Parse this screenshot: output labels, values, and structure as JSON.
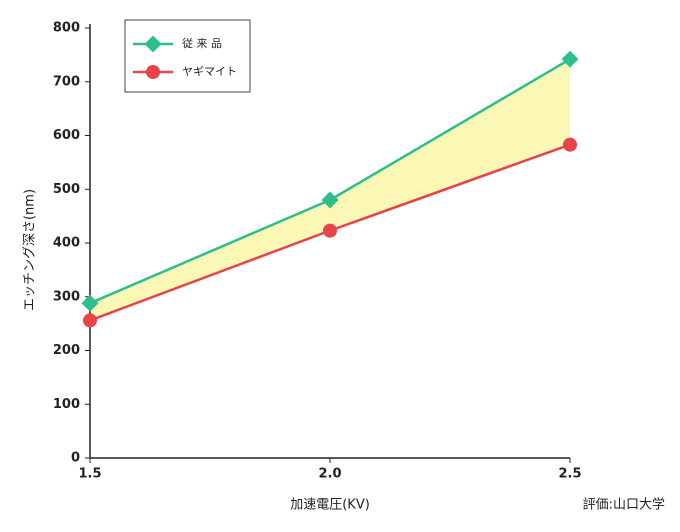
{
  "chart_data": {
    "type": "line",
    "x": [
      1.5,
      2,
      2.5
    ],
    "xlim": [
      1.5,
      2.5
    ],
    "xticks": [
      1.5,
      {
        "value": 2,
        "label": "2.0"
      },
      2.5
    ],
    "ylim": [
      0,
      800
    ],
    "yticks": [
      0,
      100,
      200,
      300,
      400,
      500,
      600,
      700,
      800
    ],
    "xlabel": "加速電圧(KV)",
    "ylabel": "エッチング深さ(nm)",
    "annotation": "評価:山口大学",
    "fill_between": true,
    "fill_color": "#fbf7b4",
    "legend": "upper left",
    "series": [
      {
        "name": "従 来 品",
        "color": "#2ebd8e",
        "marker": "diamond",
        "values": [
          288,
          480,
          742
        ]
      },
      {
        "name": "ヤギマイト",
        "color": "#e8424a",
        "marker": "circle",
        "values": [
          256,
          423,
          583
        ]
      }
    ]
  }
}
